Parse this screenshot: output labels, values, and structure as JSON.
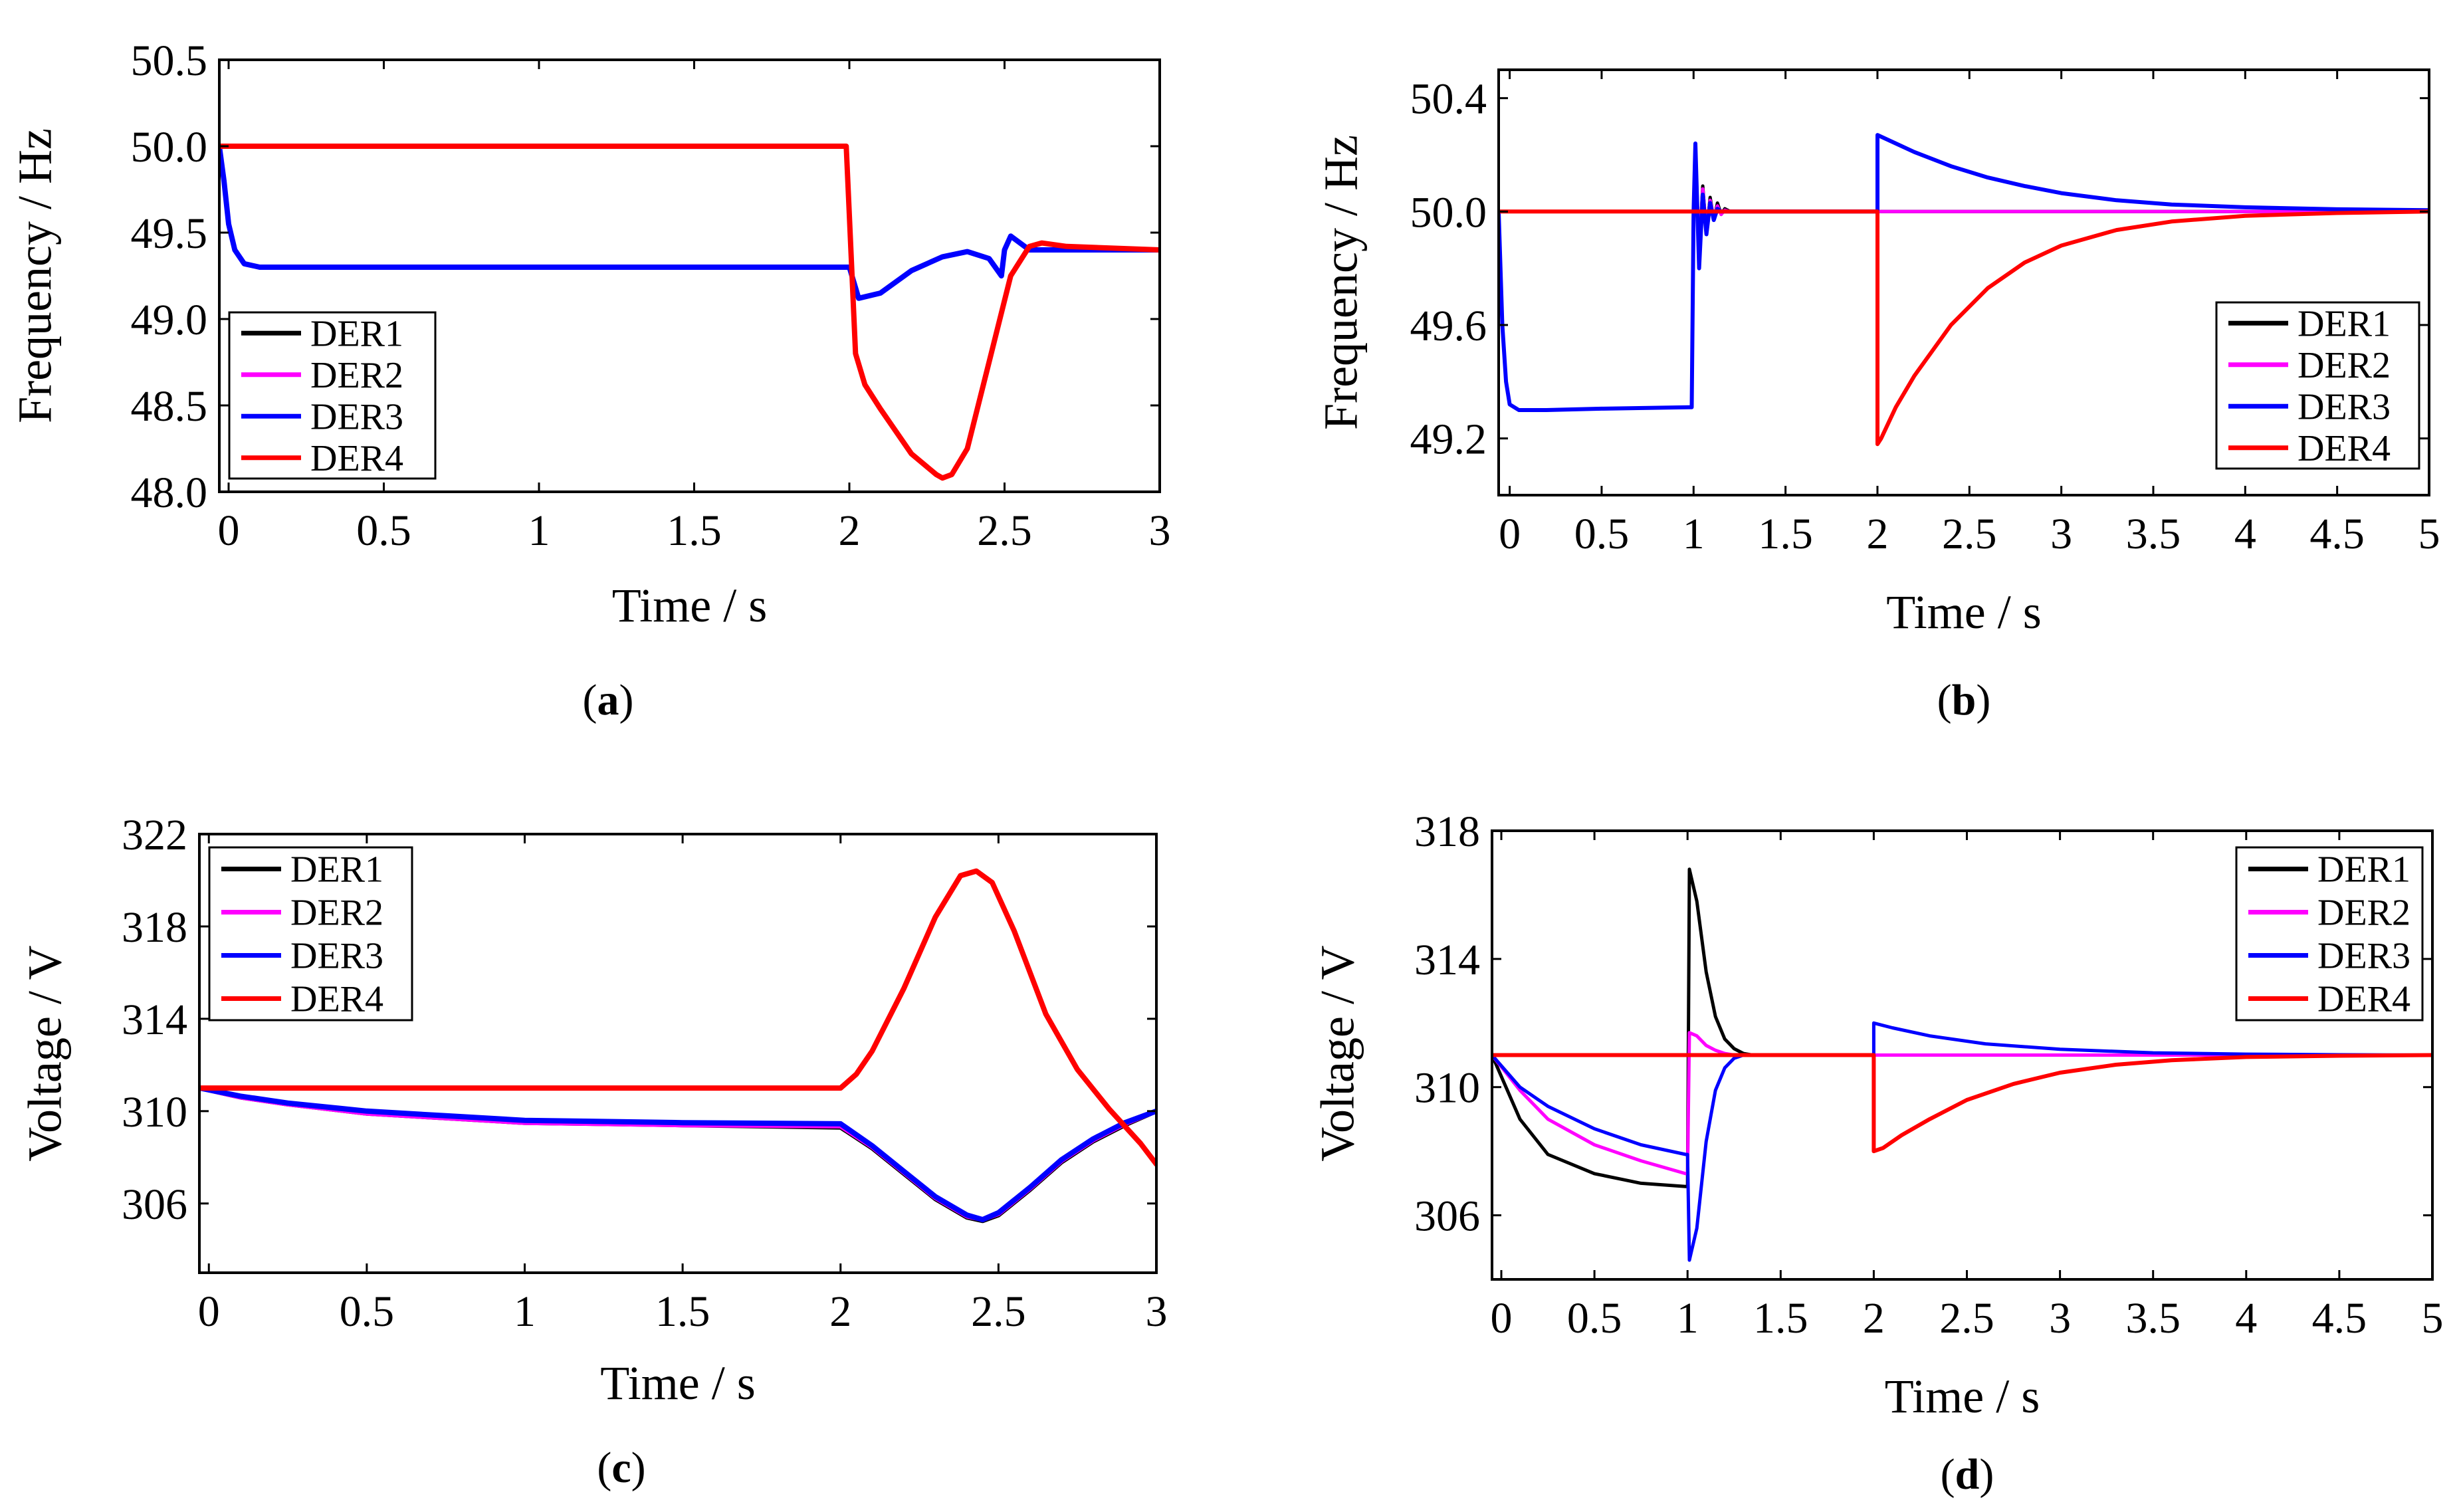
{
  "colors": {
    "DER1": "#000000",
    "DER2": "#ff00ff",
    "DER3": "#0000ff",
    "DER4": "#ff0000",
    "axis": "#000000"
  },
  "chart_data": [
    {
      "id": "a",
      "caption": "a",
      "type": "line",
      "xlabel": "Time / s",
      "ylabel": "Frequency / Hz",
      "xlim": [
        -0.03,
        3
      ],
      "ylim": [
        48.0,
        50.5
      ],
      "xticks": [
        0,
        0.5,
        1,
        1.5,
        2,
        2.5,
        3
      ],
      "xtick_labels": [
        "0",
        "0.5",
        "1",
        "1.5",
        "2",
        "2.5",
        "3"
      ],
      "yticks": [
        48.0,
        48.5,
        49.0,
        49.5,
        50.0,
        50.5
      ],
      "ytick_labels": [
        "48.0",
        "48.5",
        "49.0",
        "49.5",
        "50.0",
        "50.5"
      ],
      "legend_position": "bottom-left",
      "series": [
        {
          "name": "DER1",
          "color_key": "DER1",
          "width": 7,
          "x": [
            -0.03,
            -0.015,
            0,
            0.02,
            0.05,
            0.1,
            1.0,
            1.99,
            2.0,
            2.03,
            2.1,
            2.2,
            2.3,
            2.38,
            2.45,
            2.47,
            2.49,
            2.5,
            2.52,
            2.58,
            2.7,
            3.0
          ],
          "y": [
            50.0,
            49.8,
            49.55,
            49.4,
            49.32,
            49.3,
            49.3,
            49.3,
            49.3,
            49.12,
            49.15,
            49.28,
            49.36,
            49.39,
            49.35,
            49.3,
            49.25,
            49.4,
            49.48,
            49.4,
            49.4,
            49.4
          ]
        },
        {
          "name": "DER2",
          "color_key": "DER2",
          "width": 7,
          "x": [
            -0.03,
            -0.015,
            0,
            0.02,
            0.05,
            0.1,
            1.0,
            1.99,
            2.0,
            2.03,
            2.1,
            2.2,
            2.3,
            2.38,
            2.45,
            2.47,
            2.49,
            2.5,
            2.52,
            2.58,
            2.7,
            3.0
          ],
          "y": [
            50.0,
            49.8,
            49.55,
            49.4,
            49.32,
            49.3,
            49.3,
            49.3,
            49.3,
            49.12,
            49.15,
            49.28,
            49.36,
            49.39,
            49.35,
            49.3,
            49.25,
            49.4,
            49.48,
            49.4,
            49.4,
            49.4
          ]
        },
        {
          "name": "DER3",
          "color_key": "DER3",
          "width": 8,
          "x": [
            -0.03,
            -0.015,
            0,
            0.02,
            0.05,
            0.1,
            1.0,
            1.99,
            2.0,
            2.03,
            2.1,
            2.2,
            2.3,
            2.38,
            2.45,
            2.47,
            2.49,
            2.5,
            2.52,
            2.58,
            2.7,
            3.0
          ],
          "y": [
            50.0,
            49.8,
            49.55,
            49.4,
            49.32,
            49.3,
            49.3,
            49.3,
            49.3,
            49.12,
            49.15,
            49.28,
            49.36,
            49.39,
            49.35,
            49.3,
            49.25,
            49.4,
            49.48,
            49.4,
            49.4,
            49.4
          ]
        },
        {
          "name": "DER4",
          "color_key": "DER4",
          "width": 8,
          "x": [
            -0.03,
            1.0,
            1.99,
            2.0,
            2.02,
            2.05,
            2.1,
            2.2,
            2.28,
            2.3,
            2.33,
            2.38,
            2.45,
            2.52,
            2.58,
            2.62,
            2.7,
            3.0
          ],
          "y": [
            50.0,
            50.0,
            50.0,
            49.6,
            48.8,
            48.62,
            48.48,
            48.22,
            48.1,
            48.08,
            48.1,
            48.25,
            48.75,
            49.25,
            49.42,
            49.44,
            49.42,
            49.4
          ]
        }
      ]
    },
    {
      "id": "b",
      "caption": "b",
      "type": "line",
      "xlabel": "Time / s",
      "ylabel": "Frequency / Hz",
      "xlim": [
        -0.06,
        5
      ],
      "ylim": [
        49.0,
        50.5
      ],
      "xticks": [
        0,
        0.5,
        1,
        1.5,
        2,
        2.5,
        3,
        3.5,
        4,
        4.5,
        5
      ],
      "xtick_labels": [
        "0",
        "0.5",
        "1",
        "1.5",
        "2",
        "2.5",
        "3",
        "3.5",
        "4",
        "4.5",
        "5"
      ],
      "yticks": [
        49.2,
        49.6,
        50.0,
        50.4
      ],
      "ytick_labels": [
        "49.2",
        "49.6",
        "50.0",
        "50.4"
      ],
      "legend_position": "bottom-right",
      "series": [
        {
          "name": "DER1",
          "color_key": "DER1",
          "width": 5,
          "x": [
            -0.06,
            -0.04,
            -0.02,
            0,
            0.05,
            0.2,
            0.5,
            0.99,
            1.0,
            1.01,
            1.03,
            1.05,
            1.07,
            1.09,
            1.11,
            1.13,
            1.15,
            1.17,
            1.2,
            1.25,
            1.35,
            2.0,
            5.0
          ],
          "y": [
            50.0,
            49.6,
            49.4,
            49.32,
            49.3,
            49.3,
            49.305,
            49.31,
            50.0,
            50.2,
            49.85,
            50.09,
            49.92,
            50.05,
            49.97,
            50.03,
            49.99,
            50.01,
            50.0,
            50.0,
            50.0,
            50.0,
            50.0
          ]
        },
        {
          "name": "DER2",
          "color_key": "DER2",
          "width": 5,
          "x": [
            -0.06,
            -0.04,
            -0.02,
            0,
            0.05,
            0.2,
            0.5,
            0.99,
            1.0,
            1.01,
            1.03,
            1.05,
            1.07,
            1.09,
            1.11,
            1.13,
            1.15,
            1.17,
            1.2,
            1.25,
            1.35,
            2.0,
            5.0
          ],
          "y": [
            50.0,
            49.6,
            49.4,
            49.32,
            49.3,
            49.3,
            49.305,
            49.31,
            50.0,
            50.22,
            49.87,
            50.08,
            49.94,
            50.04,
            49.98,
            50.02,
            49.99,
            50.005,
            50.0,
            50.0,
            50.0,
            50.0,
            50.0
          ]
        },
        {
          "name": "DER3",
          "color_key": "DER3",
          "width": 6,
          "x": [
            -0.06,
            -0.04,
            -0.02,
            0,
            0.05,
            0.2,
            0.5,
            0.99,
            1.0,
            1.01,
            1.03,
            1.05,
            1.07,
            1.09,
            1.11,
            1.13,
            1.15,
            1.2,
            1.3,
            1.99,
            2.0,
            2.0,
            2.1,
            2.2,
            2.4,
            2.6,
            2.8,
            3.0,
            3.3,
            3.6,
            4.0,
            4.5,
            5.0
          ],
          "y": [
            50.0,
            49.6,
            49.4,
            49.32,
            49.3,
            49.3,
            49.305,
            49.31,
            50.0,
            50.24,
            49.8,
            50.06,
            49.92,
            50.03,
            49.97,
            50.01,
            50.0,
            50.0,
            50.0,
            50.0,
            50.0,
            50.27,
            50.24,
            50.21,
            50.16,
            50.12,
            50.09,
            50.065,
            50.04,
            50.025,
            50.015,
            50.008,
            50.005
          ]
        },
        {
          "name": "DER4",
          "color_key": "DER4",
          "width": 6,
          "x": [
            -0.06,
            1.0,
            1.99,
            2.0,
            2.0,
            2.02,
            2.1,
            2.2,
            2.4,
            2.6,
            2.8,
            3.0,
            3.3,
            3.6,
            4.0,
            4.5,
            5.0
          ],
          "y": [
            50.0,
            50.0,
            50.0,
            50.0,
            49.18,
            49.2,
            49.31,
            49.42,
            49.6,
            49.73,
            49.82,
            49.88,
            49.935,
            49.965,
            49.985,
            49.995,
            50.0
          ]
        }
      ]
    },
    {
      "id": "c",
      "caption": "c",
      "type": "line",
      "xlabel": "Time / s",
      "ylabel": "Voltage / V",
      "xlim": [
        -0.03,
        3
      ],
      "ylim": [
        303,
        322
      ],
      "xticks": [
        0,
        0.5,
        1,
        1.5,
        2,
        2.5,
        3
      ],
      "xtick_labels": [
        "0",
        "0.5",
        "1",
        "1.5",
        "2",
        "2.5",
        "3"
      ],
      "yticks": [
        306,
        310,
        314,
        318,
        322
      ],
      "ytick_labels": [
        "306",
        "310",
        "314",
        "318",
        "322"
      ],
      "legend_position": "top-left",
      "series": [
        {
          "name": "DER1",
          "color_key": "DER1",
          "width": 7,
          "x": [
            -0.03,
            0.1,
            0.25,
            0.5,
            0.75,
            1.0,
            1.5,
            2.0,
            2.1,
            2.2,
            2.3,
            2.4,
            2.45,
            2.5,
            2.6,
            2.7,
            2.8,
            2.9,
            3.0
          ],
          "y": [
            311.0,
            310.6,
            310.3,
            309.9,
            309.7,
            309.5,
            309.4,
            309.3,
            308.4,
            307.3,
            306.2,
            305.4,
            305.25,
            305.5,
            306.6,
            307.8,
            308.7,
            309.4,
            310.0
          ]
        },
        {
          "name": "DER2",
          "color_key": "DER2",
          "width": 7,
          "x": [
            -0.03,
            0.1,
            0.25,
            0.5,
            0.75,
            1.0,
            1.5,
            2.0,
            2.1,
            2.2,
            2.3,
            2.4,
            2.45,
            2.5,
            2.6,
            2.7,
            2.8,
            2.9,
            3.0
          ],
          "y": [
            311.0,
            310.6,
            310.3,
            309.9,
            309.7,
            309.5,
            309.4,
            309.35,
            308.45,
            307.35,
            306.25,
            305.45,
            305.3,
            305.55,
            306.65,
            307.85,
            308.75,
            309.45,
            310.0
          ]
        },
        {
          "name": "DER3",
          "color_key": "DER3",
          "width": 8,
          "x": [
            -0.03,
            0.1,
            0.25,
            0.5,
            0.75,
            1.0,
            1.5,
            2.0,
            2.1,
            2.2,
            2.3,
            2.4,
            2.45,
            2.5,
            2.6,
            2.7,
            2.8,
            2.9,
            3.0
          ],
          "y": [
            311.0,
            310.65,
            310.35,
            310.0,
            309.8,
            309.6,
            309.5,
            309.45,
            308.5,
            307.4,
            306.3,
            305.5,
            305.3,
            305.6,
            306.7,
            307.9,
            308.8,
            309.5,
            310.0
          ]
        },
        {
          "name": "DER4",
          "color_key": "DER4",
          "width": 8,
          "x": [
            -0.03,
            1.0,
            1.99,
            2.0,
            2.05,
            2.1,
            2.2,
            2.3,
            2.38,
            2.43,
            2.48,
            2.55,
            2.65,
            2.75,
            2.85,
            2.95,
            3.0
          ],
          "y": [
            311.0,
            311.0,
            311.0,
            311.0,
            311.6,
            312.6,
            315.3,
            318.4,
            320.2,
            320.4,
            319.9,
            317.8,
            314.2,
            311.8,
            310.1,
            308.6,
            307.7
          ]
        }
      ]
    },
    {
      "id": "d",
      "caption": "d",
      "type": "line",
      "xlabel": "Time / s",
      "ylabel": "Voltage / V",
      "xlim": [
        -0.05,
        5
      ],
      "ylim": [
        304,
        318
      ],
      "xticks": [
        0,
        0.5,
        1,
        1.5,
        2,
        2.5,
        3,
        3.5,
        4,
        4.5,
        5
      ],
      "xtick_labels": [
        "0",
        "0.5",
        "1",
        "1.5",
        "2",
        "2.5",
        "3",
        "3.5",
        "4",
        "4.5",
        "5"
      ],
      "yticks": [
        306,
        310,
        314,
        318
      ],
      "ytick_labels": [
        "306",
        "310",
        "314",
        "318"
      ],
      "legend_position": "top-right",
      "series": [
        {
          "name": "DER1",
          "color_key": "DER1",
          "width": 5,
          "x": [
            -0.05,
            0.1,
            0.25,
            0.5,
            0.75,
            0.99,
            1.0,
            1.01,
            1.05,
            1.1,
            1.15,
            1.2,
            1.25,
            1.3,
            1.35,
            1.4,
            1.5,
            2.0,
            5.0
          ],
          "y": [
            311.0,
            309.0,
            307.9,
            307.3,
            307.0,
            306.9,
            306.9,
            316.8,
            315.8,
            313.6,
            312.2,
            311.5,
            311.2,
            311.05,
            311.0,
            311.0,
            311.0,
            311.0,
            311.0
          ]
        },
        {
          "name": "DER2",
          "color_key": "DER2",
          "width": 5,
          "x": [
            -0.05,
            0.1,
            0.25,
            0.5,
            0.75,
            0.99,
            1.0,
            1.01,
            1.05,
            1.1,
            1.15,
            1.2,
            1.25,
            1.3,
            1.4,
            2.0,
            5.0
          ],
          "y": [
            311.0,
            309.9,
            309.0,
            308.2,
            307.7,
            307.3,
            307.3,
            311.7,
            311.6,
            311.3,
            311.15,
            311.05,
            311.0,
            311.0,
            311.0,
            311.0,
            311.0
          ]
        },
        {
          "name": "DER3",
          "color_key": "DER3",
          "width": 5,
          "x": [
            -0.05,
            0.1,
            0.25,
            0.5,
            0.75,
            0.99,
            1.0,
            1.01,
            1.05,
            1.1,
            1.15,
            1.2,
            1.25,
            1.3,
            1.4,
            1.99,
            2.0,
            2.0,
            2.1,
            2.3,
            2.6,
            3.0,
            3.5,
            4.0,
            4.5,
            5.0
          ],
          "y": [
            311.0,
            310.0,
            309.4,
            308.7,
            308.2,
            307.9,
            307.9,
            304.6,
            305.6,
            308.3,
            309.9,
            310.6,
            310.9,
            311.0,
            311.0,
            311.0,
            311.0,
            312.0,
            311.85,
            311.6,
            311.35,
            311.18,
            311.07,
            311.03,
            311.01,
            311.0
          ]
        },
        {
          "name": "DER4",
          "color_key": "DER4",
          "width": 6,
          "x": [
            -0.05,
            1.0,
            1.99,
            2.0,
            2.0,
            2.05,
            2.15,
            2.3,
            2.5,
            2.75,
            3.0,
            3.3,
            3.6,
            4.0,
            4.5,
            5.0
          ],
          "y": [
            311.0,
            311.0,
            311.0,
            311.0,
            308.0,
            308.1,
            308.5,
            309.0,
            309.6,
            310.1,
            310.45,
            310.7,
            310.84,
            310.94,
            310.98,
            311.0
          ]
        }
      ]
    }
  ]
}
